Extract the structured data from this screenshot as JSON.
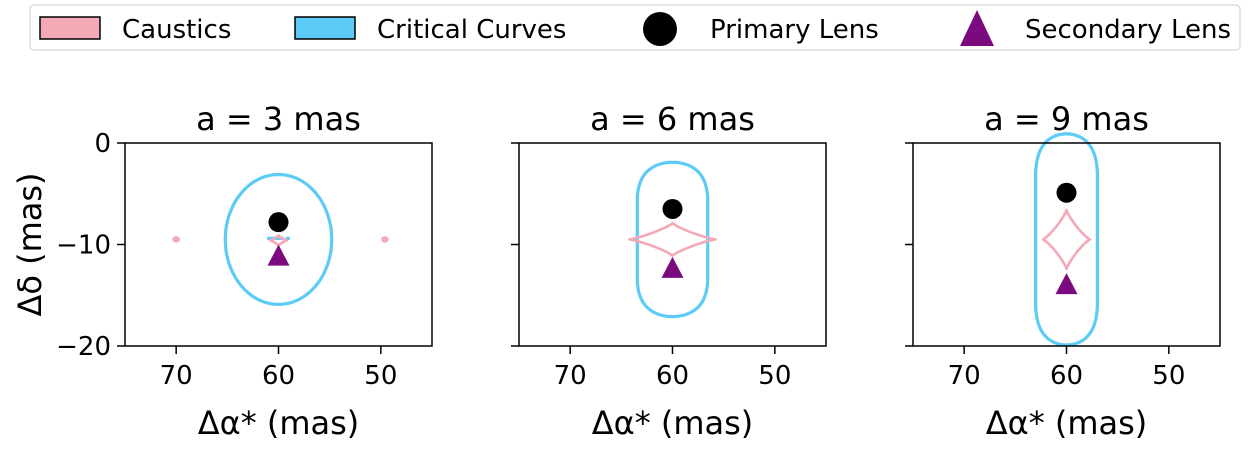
{
  "chart_data": [
    {
      "type": "scatter",
      "title": "a = 3 mas",
      "xlabel": "Δα* (mas)",
      "ylabel": "Δδ (mas)",
      "xlim": [
        75,
        45
      ],
      "ylim": [
        -20,
        0
      ],
      "xticks": [
        70,
        60,
        50
      ],
      "yticks": [
        0,
        -10,
        -20
      ],
      "primary_lens": {
        "x": 60,
        "y": -7.8
      },
      "secondary_lens": {
        "x": 60,
        "y": -11.2
      },
      "critical_curves": [
        {
          "kind": "ellipse",
          "cx": 60,
          "cy": -9.5,
          "rx": 5.2,
          "ry": 6.4
        },
        {
          "kind": "segment",
          "points": [
            [
              61.1,
              -9.4
            ],
            [
              59.5,
              -9.4
            ]
          ]
        },
        {
          "kind": "segment",
          "points": [
            [
              59.3,
              -9.4
            ],
            [
              58.9,
              -9.4
            ]
          ]
        }
      ],
      "caustics": [
        {
          "kind": "blob",
          "cx": 70.0,
          "cy": -9.5,
          "rx": 0.3,
          "ry": 0.25
        },
        {
          "kind": "blob",
          "cx": 49.6,
          "cy": -9.5,
          "rx": 0.3,
          "ry": 0.25
        },
        {
          "kind": "astroid",
          "cx": 60,
          "cy": -9.6,
          "rx": 0.8,
          "ry": 0.5
        }
      ]
    },
    {
      "type": "scatter",
      "title": "a = 6 mas",
      "xlabel": "Δα* (mas)",
      "ylabel": "",
      "xlim": [
        75,
        45
      ],
      "ylim": [
        -20,
        0
      ],
      "xticks": [
        70,
        60,
        50
      ],
      "yticks": [
        0,
        -10,
        -20
      ],
      "primary_lens": {
        "x": 60,
        "y": -6.5
      },
      "secondary_lens": {
        "x": 60,
        "y": -12.4
      },
      "critical_curves": [
        {
          "kind": "peanut",
          "cx": 60,
          "cy": -9.5,
          "d": 3.8,
          "w": 4.1,
          "lobe_h": 3.8
        }
      ],
      "caustics": [
        {
          "kind": "astroid",
          "cx": 60,
          "cy": -9.5,
          "rx": 4.2,
          "ry": 1.6
        }
      ]
    },
    {
      "type": "scatter",
      "title": "a = 9 mas",
      "xlabel": "Δα* (mas)",
      "ylabel": "",
      "xlim": [
        75,
        45
      ],
      "ylim": [
        -20,
        0
      ],
      "xticks": [
        70,
        60,
        50
      ],
      "yticks": [
        0,
        -10,
        -20
      ],
      "primary_lens": {
        "x": 60,
        "y": -4.9
      },
      "secondary_lens": {
        "x": 60,
        "y": -14.0
      },
      "critical_curves": [
        {
          "kind": "peanut",
          "cx": 60,
          "cy": -9.5,
          "d": 6.2,
          "w": 3.6,
          "lobe_h": 4.2
        }
      ],
      "caustics": [
        {
          "kind": "astroid",
          "cx": 60,
          "cy": -9.5,
          "rx": 2.3,
          "ry": 2.9
        }
      ]
    }
  ],
  "legend": {
    "items": [
      {
        "label": "Caustics",
        "kind": "patch",
        "fill": "#f4a9b7",
        "stroke": "#000000"
      },
      {
        "label": "Critical Curves",
        "kind": "patch",
        "fill": "#5ccbf5",
        "stroke": "#000000"
      },
      {
        "label": "Primary Lens",
        "kind": "circle",
        "fill": "#000000"
      },
      {
        "label": "Secondary Lens",
        "kind": "triangle",
        "fill": "#7b0a7f"
      }
    ]
  },
  "colors": {
    "caustics": "#f4a9b7",
    "critical_curves": "#5ccbf5",
    "primary_lens": "#000000",
    "secondary_lens": "#7b0a7f"
  }
}
